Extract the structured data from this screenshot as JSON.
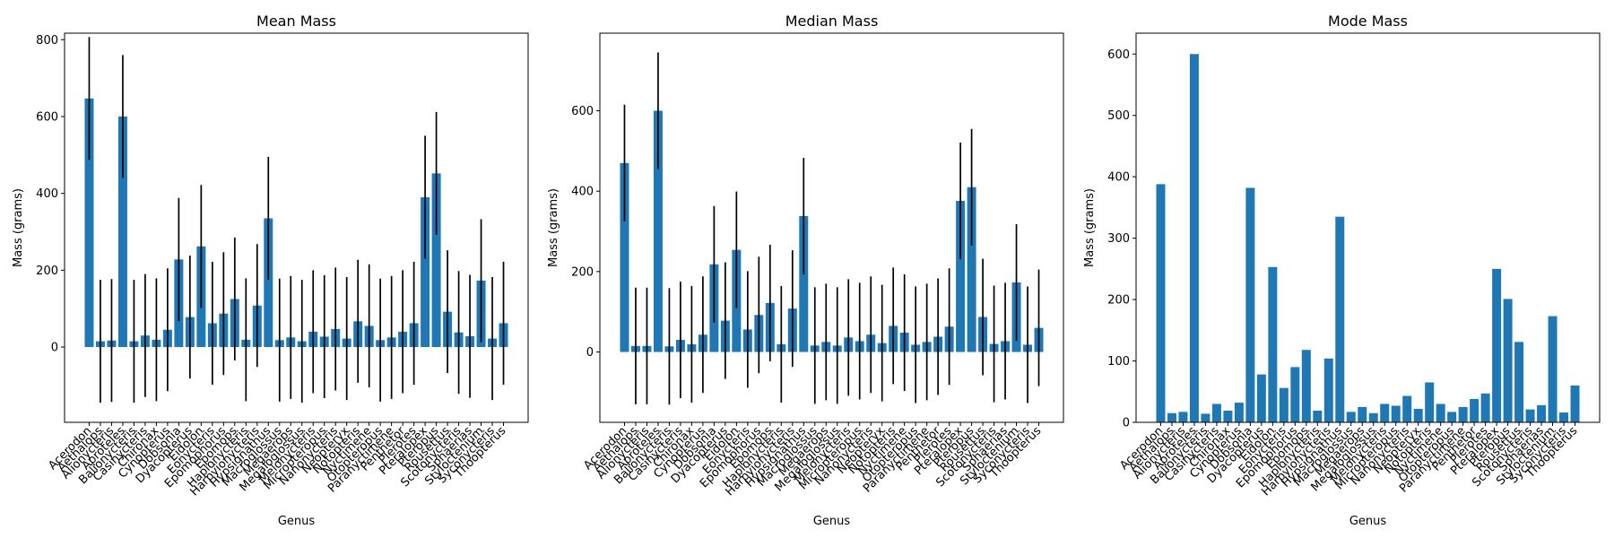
{
  "chart_data": [
    {
      "type": "bar",
      "title": "Mean Mass",
      "xlabel": "Genus",
      "ylabel": "Mass (grams)",
      "color": "#1f77b4",
      "categories": [
        "Acerodon",
        "Aethalops",
        "Alionycteris",
        "Aproteles",
        "Balionycteris",
        "Casinycteris",
        "Chironax",
        "Cynopterus",
        "Dobsonia",
        "Dyacopterus",
        "Eidolon",
        "Eonycteris",
        "Epomophorus",
        "Epomops",
        "Haplonycteris",
        "Harpyionycteris",
        "Hypsignathus",
        "Macroglossus",
        "Megaerops",
        "Megaloglossus",
        "Melonycteris",
        "Micropteropus",
        "Nanonycteris",
        "Neopteryx",
        "Notopteris",
        "Nyctimene",
        "Otopteropus",
        "Paranyctimene",
        "Penthetor",
        "Plerotes",
        "Pteralopex",
        "Pteropus",
        "Rousettus",
        "Scotonycteris",
        "Sphaerias",
        "Styloctenium",
        "Syconycteris",
        "Thoopterus"
      ],
      "values": [
        647,
        15,
        17,
        600,
        15,
        30,
        19,
        45,
        228,
        78,
        262,
        62,
        87,
        125,
        19,
        108,
        335,
        18,
        25,
        15,
        40,
        27,
        47,
        22,
        67,
        55,
        18,
        25,
        40,
        62,
        390,
        452,
        92,
        38,
        28,
        173,
        22,
        62
      ],
      "errors": [
        160,
        160,
        160,
        160,
        160,
        160,
        160,
        160,
        160,
        160,
        160,
        160,
        160,
        160,
        160,
        160,
        160,
        160,
        160,
        160,
        160,
        160,
        160,
        160,
        160,
        160,
        160,
        160,
        160,
        160,
        160,
        160,
        160,
        160,
        160,
        160,
        160,
        160
      ],
      "ylim": [
        -196,
        817
      ],
      "yticks": [
        0,
        200,
        400,
        600,
        800
      ]
    },
    {
      "type": "bar",
      "title": "Median Mass",
      "xlabel": "Genus",
      "ylabel": "Mass (grams)",
      "color": "#1f77b4",
      "categories": [
        "Acerodon",
        "Aethalops",
        "Alionycteris",
        "Aproteles",
        "Balionycteris",
        "Casinycteris",
        "Chironax",
        "Cynopterus",
        "Dobsonia",
        "Dyacopterus",
        "Eidolon",
        "Eonycteris",
        "Epomophorus",
        "Epomops",
        "Haplonycteris",
        "Harpyionycteris",
        "Hypsignathus",
        "Macroglossus",
        "Megaerops",
        "Megaloglossus",
        "Melonycteris",
        "Micropteropus",
        "Nanonycteris",
        "Neopteryx",
        "Notopteris",
        "Nyctimene",
        "Otopteropus",
        "Paranyctimene",
        "Penthetor",
        "Plerotes",
        "Pteralopex",
        "Pteropus",
        "Rousettus",
        "Scotonycteris",
        "Sphaerias",
        "Styloctenium",
        "Syconycteris",
        "Thoopterus"
      ],
      "values": [
        470,
        15,
        15,
        600,
        14,
        30,
        19,
        43,
        218,
        78,
        254,
        56,
        92,
        122,
        19,
        108,
        338,
        16,
        25,
        16,
        36,
        27,
        43,
        22,
        65,
        48,
        18,
        25,
        38,
        63,
        376,
        410,
        87,
        20,
        27,
        173,
        18,
        60
      ],
      "errors": [
        145,
        145,
        145,
        145,
        145,
        145,
        145,
        145,
        145,
        145,
        145,
        145,
        145,
        145,
        145,
        145,
        145,
        145,
        145,
        145,
        145,
        145,
        145,
        145,
        145,
        145,
        145,
        145,
        145,
        145,
        145,
        145,
        145,
        145,
        145,
        145,
        145,
        145
      ],
      "ylim": [
        -175,
        793
      ],
      "yticks": [
        0,
        200,
        400,
        600
      ]
    },
    {
      "type": "bar",
      "title": "Mode Mass",
      "xlabel": "Genus",
      "ylabel": "Mass (grams)",
      "color": "#1f77b4",
      "categories": [
        "Acerodon",
        "Aethalops",
        "Alionycteris",
        "Aproteles",
        "Balionycteris",
        "Casinycteris",
        "Chironax",
        "Cynopterus",
        "Dobsonia",
        "Dyacopterus",
        "Eidolon",
        "Eonycteris",
        "Epomophorus",
        "Epomops",
        "Haplonycteris",
        "Harpyionycteris",
        "Hypsignathus",
        "Macroglossus",
        "Megaerops",
        "Megaloglossus",
        "Melonycteris",
        "Micropteropus",
        "Nanonycteris",
        "Neopteryx",
        "Notopteris",
        "Nyctimene",
        "Otopteropus",
        "Paranyctimene",
        "Penthetor",
        "Plerotes",
        "Pteralopex",
        "Pteropus",
        "Rousettus",
        "Scotonycteris",
        "Sphaerias",
        "Styloctenium",
        "Syconycteris",
        "Thoopterus"
      ],
      "values": [
        388,
        15,
        17,
        600,
        14,
        30,
        19,
        32,
        382,
        78,
        253,
        56,
        90,
        118,
        19,
        104,
        335,
        17,
        25,
        15,
        30,
        27,
        43,
        22,
        65,
        30,
        17,
        25,
        38,
        47,
        250,
        201,
        131,
        21,
        28,
        173,
        16,
        60
      ],
      "ylim": [
        0,
        634
      ],
      "yticks": [
        0,
        100,
        200,
        300,
        400,
        500,
        600
      ]
    }
  ]
}
